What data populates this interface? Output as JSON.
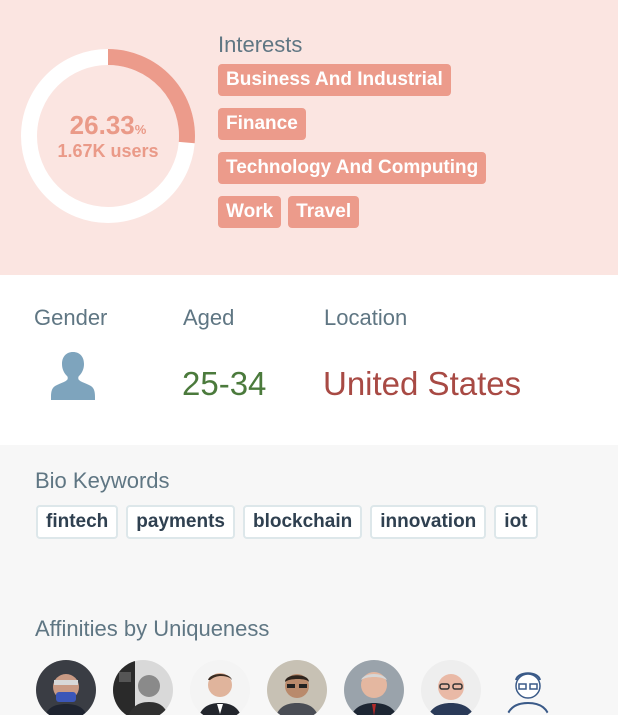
{
  "segment": {
    "percent": "26.33",
    "percent_symbol": "%",
    "users": "1.67K users",
    "share": 0.2633,
    "colors": {
      "ring_fill": "#ec9b8b",
      "ring_track": "#ffffff"
    }
  },
  "interests": {
    "label": "Interests",
    "tags": [
      "Business And Industrial",
      "Finance",
      "Technology And Computing",
      "Work",
      "Travel"
    ]
  },
  "demographics": {
    "gender_label": "Gender",
    "gender_icon": "user-silhouette-icon",
    "aged_label": "Aged",
    "aged_value": "25-34",
    "location_label": "Location",
    "location_value": "United States"
  },
  "bio": {
    "label": "Bio Keywords",
    "keywords": [
      "fintech",
      "payments",
      "blockchain",
      "innovation",
      "iot"
    ]
  },
  "affinities": {
    "label": "Affinities by Uniqueness",
    "avatar_count": 7
  }
}
